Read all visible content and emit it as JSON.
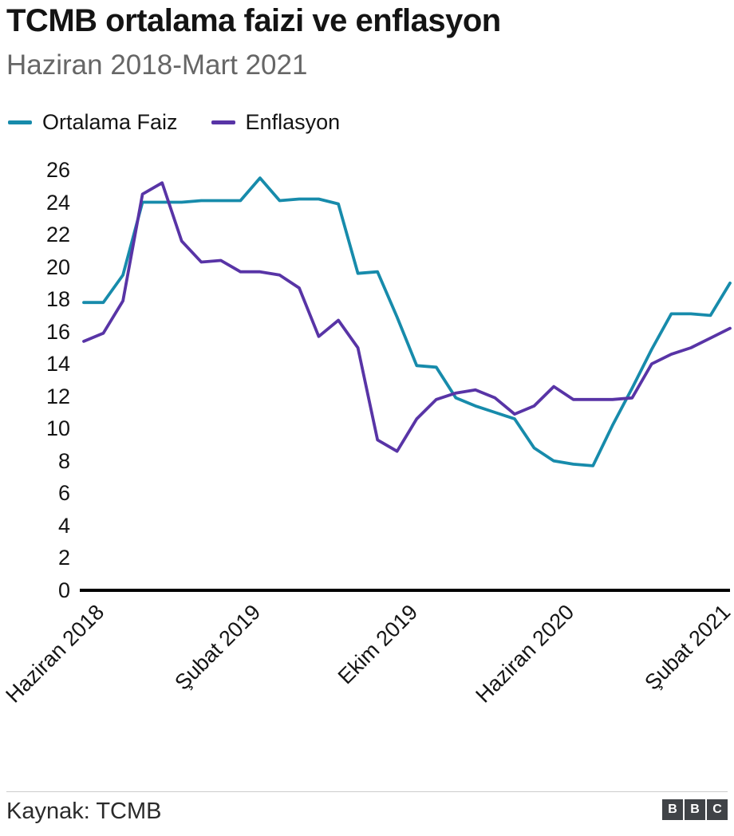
{
  "header": {
    "title": "TCMB ortalama faizi ve enflasyon",
    "subtitle": "Haziran 2018-Mart 2021"
  },
  "footer": {
    "source": "Kaynak: TCMB",
    "logo_letters": [
      "B",
      "B",
      "C"
    ]
  },
  "chart_data": {
    "type": "line",
    "title": "TCMB ortalama faizi ve enflasyon",
    "subtitle": "Haziran 2018-Mart 2021",
    "grid": false,
    "legend_position": "top",
    "ylim": [
      0,
      26
    ],
    "y_ticks": [
      0,
      2,
      4,
      6,
      8,
      10,
      12,
      14,
      16,
      18,
      20,
      22,
      24,
      26
    ],
    "x_months": [
      "2018-06",
      "2018-07",
      "2018-08",
      "2018-09",
      "2018-10",
      "2018-11",
      "2018-12",
      "2019-01",
      "2019-02",
      "2019-03",
      "2019-04",
      "2019-05",
      "2019-06",
      "2019-07",
      "2019-08",
      "2019-09",
      "2019-10",
      "2019-11",
      "2019-12",
      "2020-01",
      "2020-02",
      "2020-03",
      "2020-04",
      "2020-05",
      "2020-06",
      "2020-07",
      "2020-08",
      "2020-09",
      "2020-10",
      "2020-11",
      "2020-12",
      "2021-01",
      "2021-02",
      "2021-03"
    ],
    "x_tick_labels": [
      {
        "index": 0,
        "label": "Haziran 2018"
      },
      {
        "index": 8,
        "label": "Şubat 2019"
      },
      {
        "index": 16,
        "label": "Ekim 2019"
      },
      {
        "index": 24,
        "label": "Haziran 2020"
      },
      {
        "index": 32,
        "label": "Şubat 2021"
      }
    ],
    "series": [
      {
        "name": "Ortalama Faiz",
        "color": "#178bab",
        "values": [
          17.8,
          17.8,
          19.5,
          24,
          24,
          24,
          24.1,
          24.1,
          24.1,
          25.5,
          24.1,
          24.2,
          24.2,
          23.9,
          19.6,
          19.7,
          16.9,
          13.9,
          13.8,
          11.9,
          11.4,
          11,
          10.6,
          8.8,
          8,
          7.8,
          7.7,
          10.2,
          12.5,
          14.9,
          17.1,
          17.1,
          17,
          19
        ]
      },
      {
        "name": "Enflasyon",
        "color": "#5834a6",
        "values": [
          15.4,
          15.9,
          17.9,
          24.5,
          25.2,
          21.6,
          20.3,
          20.4,
          19.7,
          19.7,
          19.5,
          18.7,
          15.7,
          16.7,
          15,
          9.3,
          8.6,
          10.6,
          11.8,
          12.2,
          12.4,
          11.9,
          10.9,
          11.4,
          12.6,
          11.8,
          11.8,
          11.8,
          11.9,
          14,
          14.6,
          15,
          15.6,
          16.2
        ]
      }
    ],
    "source": "Kaynak: TCMB"
  }
}
